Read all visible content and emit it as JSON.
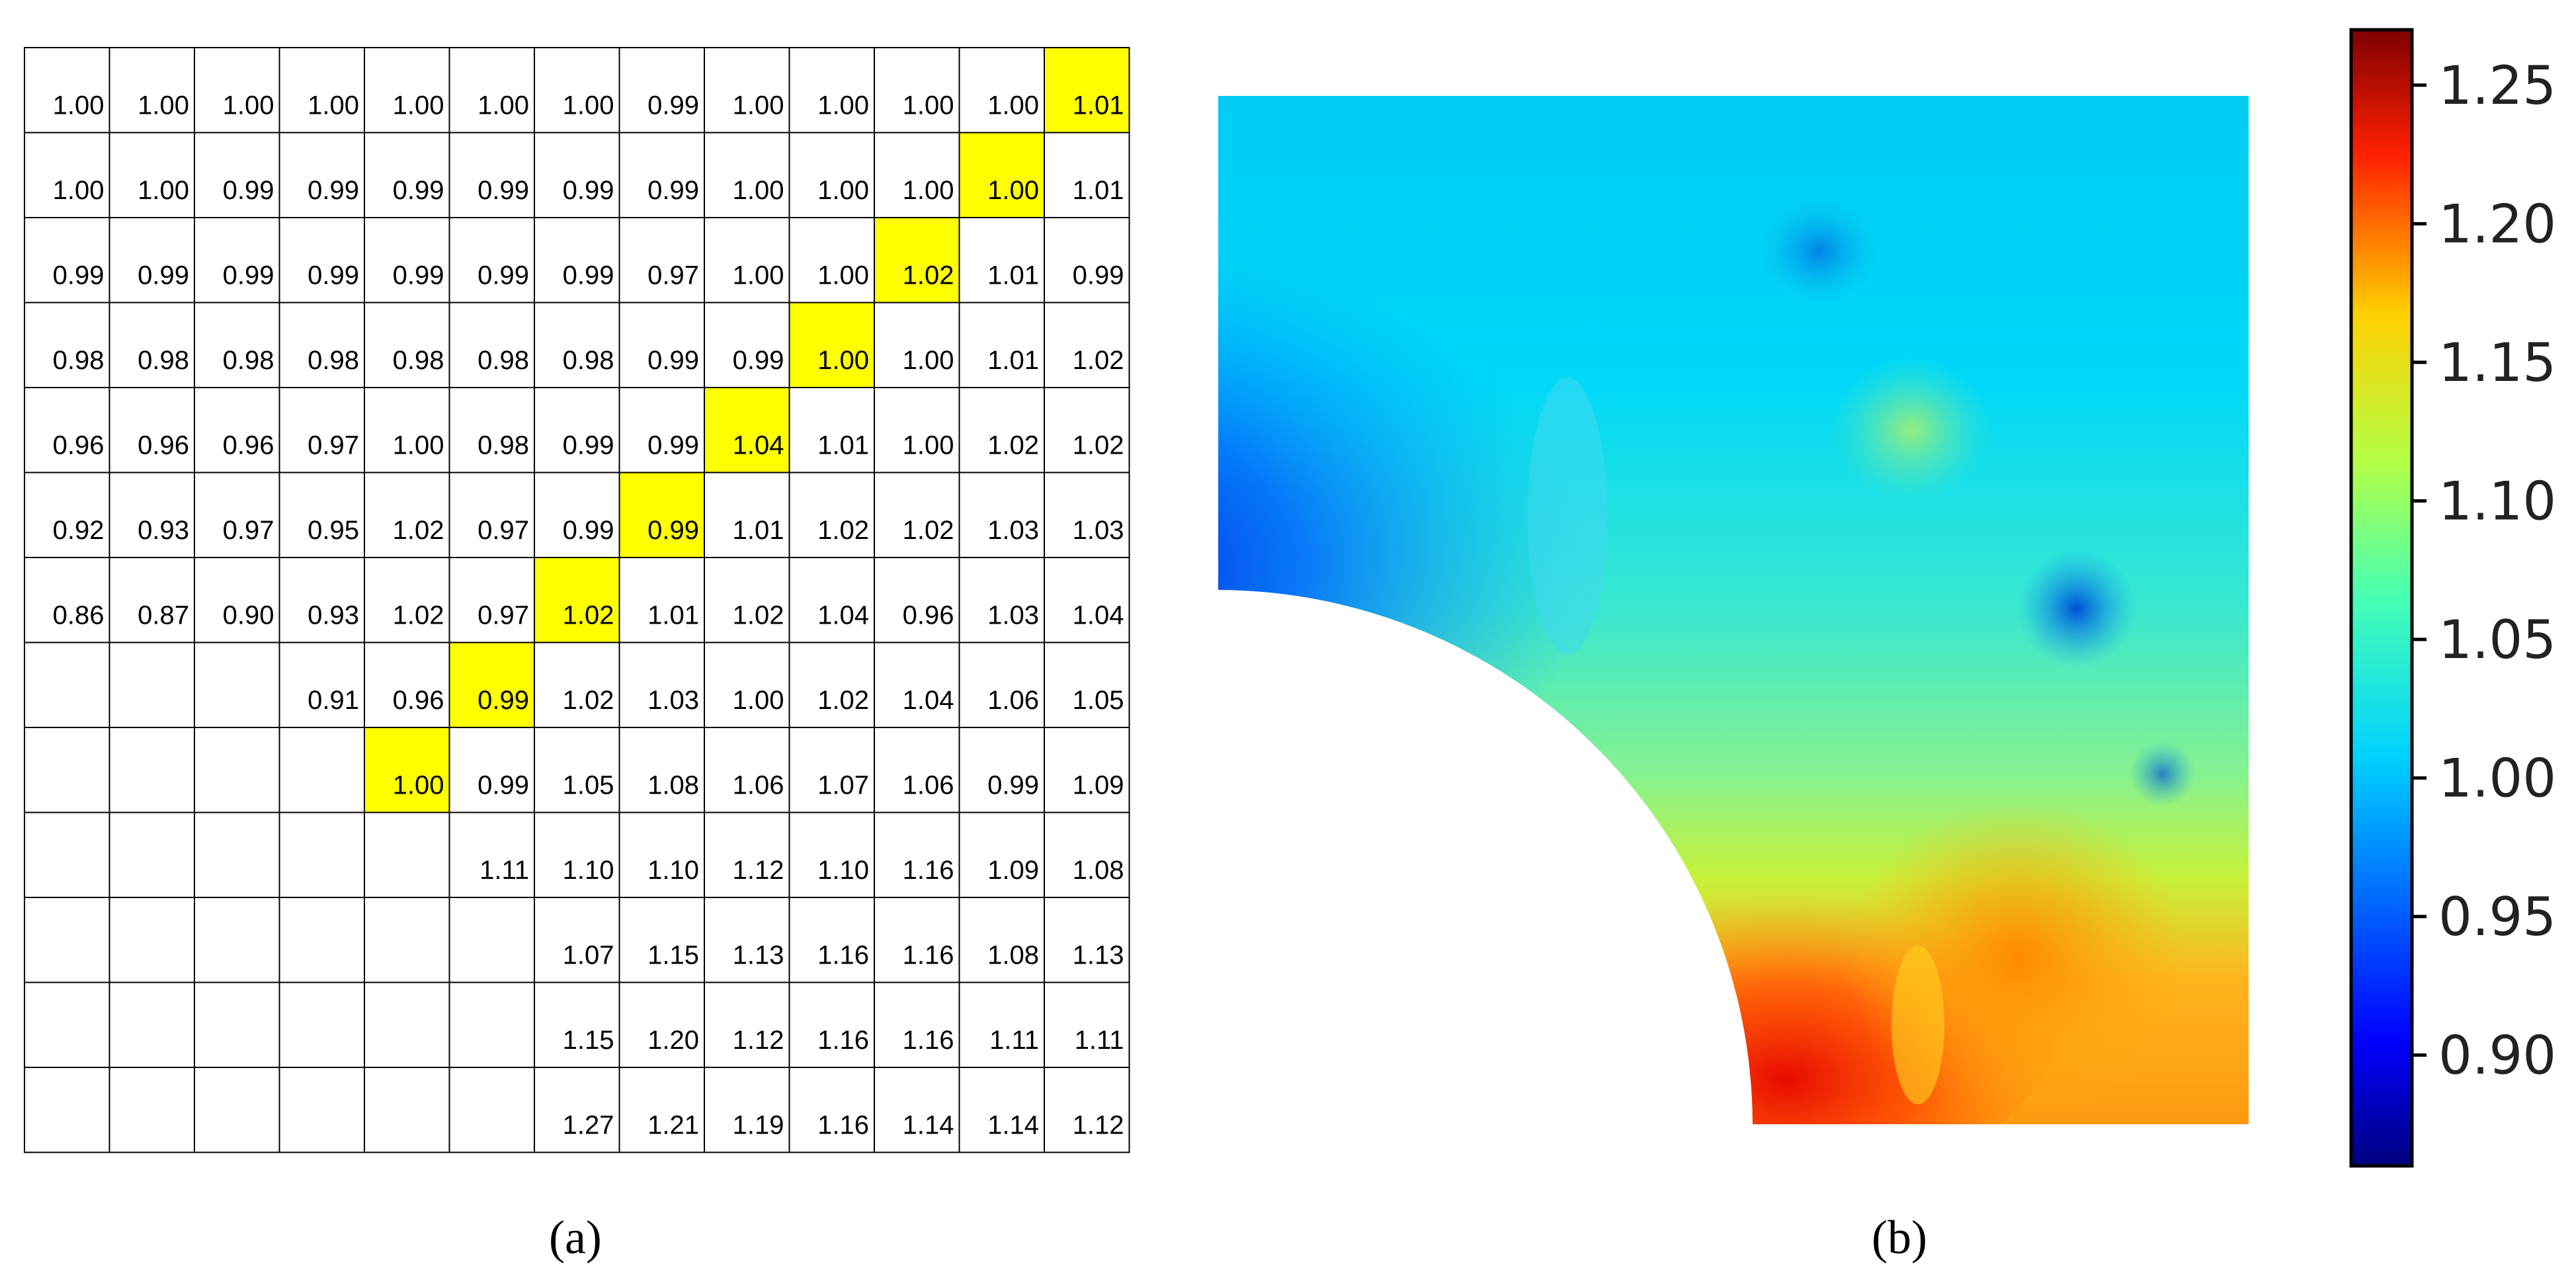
{
  "panels": {
    "a_label": "(a)",
    "b_label": "(b)"
  },
  "chart_data": [
    {
      "type": "table",
      "columns": 13,
      "rows": [
        [
          "1.00",
          "1.00",
          "1.00",
          "1.00",
          "1.00",
          "1.00",
          "1.00",
          "0.99",
          "1.00",
          "1.00",
          "1.00",
          "1.00",
          "1.01"
        ],
        [
          "1.00",
          "1.00",
          "0.99",
          "0.99",
          "0.99",
          "0.99",
          "0.99",
          "0.99",
          "1.00",
          "1.00",
          "1.00",
          "1.00",
          "1.01"
        ],
        [
          "0.99",
          "0.99",
          "0.99",
          "0.99",
          "0.99",
          "0.99",
          "0.99",
          "0.97",
          "1.00",
          "1.00",
          "1.02",
          "1.01",
          "0.99"
        ],
        [
          "0.98",
          "0.98",
          "0.98",
          "0.98",
          "0.98",
          "0.98",
          "0.98",
          "0.99",
          "0.99",
          "1.00",
          "1.00",
          "1.01",
          "1.02"
        ],
        [
          "0.96",
          "0.96",
          "0.96",
          "0.97",
          "1.00",
          "0.98",
          "0.99",
          "0.99",
          "1.04",
          "1.01",
          "1.00",
          "1.02",
          "1.02"
        ],
        [
          "0.92",
          "0.93",
          "0.97",
          "0.95",
          "1.02",
          "0.97",
          "0.99",
          "0.99",
          "1.01",
          "1.02",
          "1.02",
          "1.03",
          "1.03"
        ],
        [
          "0.86",
          "0.87",
          "0.90",
          "0.93",
          "1.02",
          "0.97",
          "1.02",
          "1.01",
          "1.02",
          "1.04",
          "0.96",
          "1.03",
          "1.04"
        ],
        [
          "",
          "",
          "",
          "0.91",
          "0.96",
          "0.99",
          "1.02",
          "1.03",
          "1.00",
          "1.02",
          "1.04",
          "1.06",
          "1.05"
        ],
        [
          "",
          "",
          "",
          "",
          "1.00",
          "0.99",
          "1.05",
          "1.08",
          "1.06",
          "1.07",
          "1.06",
          "0.99",
          "1.09"
        ],
        [
          "",
          "",
          "",
          "",
          "",
          "1.11",
          "1.10",
          "1.10",
          "1.12",
          "1.10",
          "1.16",
          "1.09",
          "1.08"
        ],
        [
          "",
          "",
          "",
          "",
          "",
          "",
          "1.07",
          "1.15",
          "1.13",
          "1.16",
          "1.16",
          "1.08",
          "1.13"
        ],
        [
          "",
          "",
          "",
          "",
          "",
          "",
          "1.15",
          "1.20",
          "1.12",
          "1.16",
          "1.16",
          "1.11",
          "1.11"
        ],
        [
          "",
          "",
          "",
          "",
          "",
          "",
          "1.27",
          "1.21",
          "1.19",
          "1.16",
          "1.14",
          "1.14",
          "1.12"
        ]
      ],
      "highlighted_cells": [
        [
          0,
          12
        ],
        [
          1,
          11
        ],
        [
          2,
          10
        ],
        [
          3,
          9
        ],
        [
          4,
          8
        ],
        [
          5,
          7
        ],
        [
          6,
          6
        ],
        [
          7,
          5
        ],
        [
          8,
          4
        ]
      ],
      "highlight_color": "#ffff00"
    },
    {
      "type": "heatmap",
      "colormap": "jet",
      "colorbar": {
        "vmin": 0.86,
        "vmax": 1.27,
        "ticks": [
          0.9,
          0.95,
          1.0,
          1.05,
          1.1,
          1.15,
          1.2,
          1.25
        ],
        "tick_labels": [
          "0.90",
          "0.95",
          "1.00",
          "1.05",
          "1.10",
          "1.15",
          "1.20",
          "1.25"
        ]
      }
    }
  ]
}
